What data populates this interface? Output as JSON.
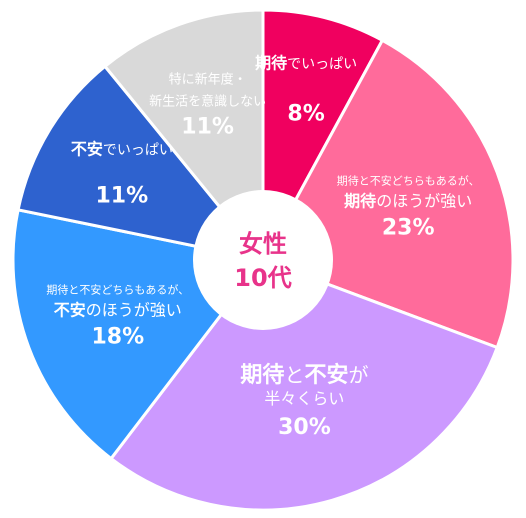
{
  "chart_data": {
    "type": "pie",
    "style": "donut",
    "center_label": [
      "女性",
      "10代"
    ],
    "slices": [
      {
        "label_lines": [
          [
            "期待",
            "でいっぱい"
          ]
        ],
        "value": 8,
        "value_label": "8%",
        "color": "#f0005f",
        "text_color": "#ffffff"
      },
      {
        "label_lines": [
          [
            "期待と不安どちらもあるが、"
          ],
          [
            "期待",
            "のほうが強い"
          ]
        ],
        "value": 23,
        "value_label": "23%",
        "color": "#ff6b9b",
        "text_color": "#ffffff"
      },
      {
        "label_lines": [
          [
            "期待",
            "と",
            "不安",
            "が"
          ],
          [
            "半々くらい"
          ]
        ],
        "value": 30,
        "value_label": "30%",
        "color": "#cc99ff",
        "text_color": "#ffffff"
      },
      {
        "label_lines": [
          [
            "期待と不安どちらもあるが、"
          ],
          [
            "不安",
            "のほうが強い"
          ]
        ],
        "value": 18,
        "value_label": "18%",
        "color": "#3399ff",
        "text_color": "#ffffff"
      },
      {
        "label_lines": [
          [
            "不安",
            "でいっぱい"
          ]
        ],
        "value": 11,
        "value_label": "11%",
        "color": "#2e62cf",
        "text_color": "#ffffff"
      },
      {
        "label_lines": [
          [
            "特に新年度・"
          ],
          [
            "新生活を意識しない"
          ]
        ],
        "value": 11,
        "value_label": "11%",
        "color": "#d9d9d9",
        "text_color": "#555555"
      }
    ]
  }
}
